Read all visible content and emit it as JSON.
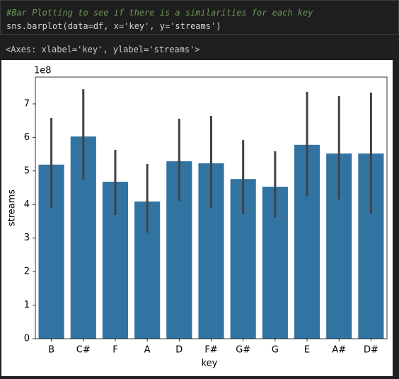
{
  "cell": {
    "comment": "#Bar Plotting to see if there is a similarities for each key",
    "code": "sns.barplot(data=df, x='key', y='streams')",
    "output": "<Axes: xlabel='key', ylabel='streams'>"
  },
  "chart_data": {
    "type": "bar",
    "x_label": "key",
    "y_label": "streams",
    "offset_label": "1e8",
    "categories": [
      "B",
      "C#",
      "F",
      "A",
      "D",
      "F#",
      "G#",
      "G",
      "E",
      "A#",
      "D#"
    ],
    "values": [
      5.19,
      6.03,
      4.68,
      4.09,
      5.29,
      5.23,
      4.76,
      4.53,
      5.78,
      5.52,
      5.52
    ],
    "ci_low": [
      3.9,
      4.74,
      3.69,
      3.16,
      4.11,
      3.9,
      3.71,
      3.61,
      4.24,
      4.15,
      3.73
    ],
    "ci_high": [
      6.58,
      7.44,
      5.63,
      5.21,
      6.56,
      6.64,
      5.92,
      5.59,
      7.36,
      7.23,
      7.34
    ],
    "color": "#3274a1",
    "error_color": "#424242",
    "ylim": [
      0,
      7.8
    ],
    "yticks": [
      0,
      1,
      2,
      3,
      4,
      5,
      6,
      7
    ],
    "grid": false
  }
}
